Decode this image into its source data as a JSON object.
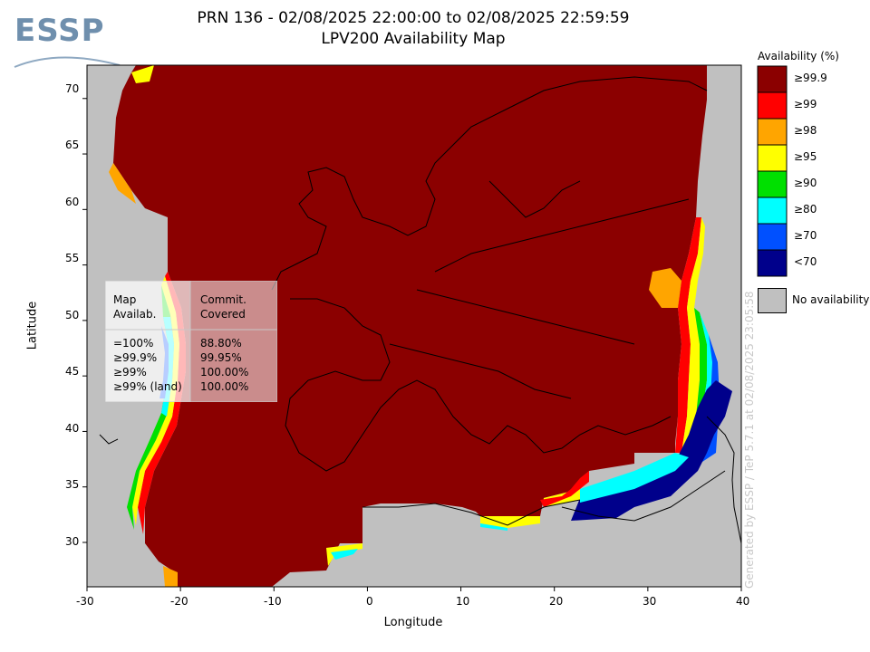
{
  "header": {
    "title_line1": "PRN 136 - 02/08/2025 22:00:00 to 02/08/2025 22:59:59",
    "title_line2": "LPV200 Availability Map",
    "logo_text": "ESSP"
  },
  "axes": {
    "xlabel": "Longitude",
    "ylabel": "Latitude",
    "x_ticks": [
      "-30",
      "-20",
      "-10",
      "0",
      "10",
      "20",
      "30",
      "40"
    ],
    "y_ticks": [
      "70",
      "65",
      "60",
      "55",
      "50",
      "45",
      "40",
      "35",
      "30"
    ],
    "x_range": [
      -30,
      40
    ],
    "y_range": [
      26,
      73
    ]
  },
  "legend": {
    "title": "Availability (%)",
    "items": [
      {
        "label": "≥99.9",
        "color": "#8b0000"
      },
      {
        "label": "≥99",
        "color": "#ff0000"
      },
      {
        "label": "≥98",
        "color": "#ffa500"
      },
      {
        "label": "≥95",
        "color": "#ffff00"
      },
      {
        "label": "≥90",
        "color": "#00e000"
      },
      {
        "label": "≥80",
        "color": "#00ffff"
      },
      {
        "label": "≥70",
        "color": "#0050ff"
      },
      {
        "label": "<70",
        "color": "#00008b"
      }
    ],
    "no_availability_label": "No availability",
    "no_availability_color": "#c0c0c0"
  },
  "stats_box": {
    "col1_header": [
      "Map",
      "Availab."
    ],
    "col2_header": [
      "Commit.",
      "Covered"
    ],
    "rows": [
      {
        "label": "=100%",
        "value": "88.80%"
      },
      {
        "label": "≥99.9%",
        "value": "99.95%"
      },
      {
        "label": "≥99%",
        "value": "100.00%"
      },
      {
        "label": "≥99% (land)",
        "value": "100.00%"
      }
    ]
  },
  "footer": {
    "generated_by": "Generated by ESSP / TeP 5.7.1 at 02/08/2025 23:05:58"
  }
}
